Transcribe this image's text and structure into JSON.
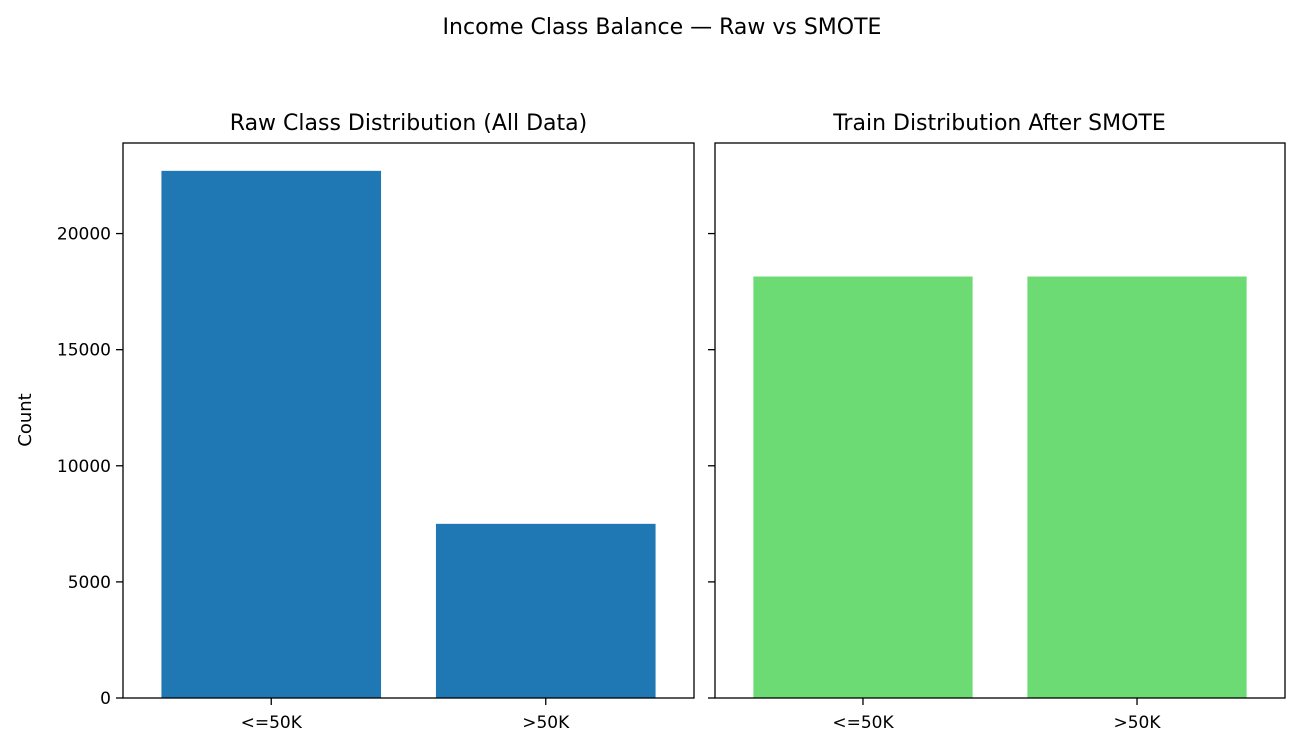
{
  "suptitle": "Income Class Balance — Raw vs SMOTE",
  "colors": {
    "raw_bar": "#1f77b4",
    "smote_bar": "#6ddb74"
  },
  "chart_data": [
    {
      "type": "bar",
      "title": "Raw Class Distribution (All Data)",
      "categories": [
        "<=50K",
        ">50K"
      ],
      "values": [
        22700,
        7500
      ],
      "xlabel": "",
      "ylabel": "Count",
      "ylim": [
        0,
        23900
      ],
      "yticks": [
        0,
        5000,
        10000,
        15000,
        20000
      ],
      "grid": false,
      "legend": "none",
      "color": "#1f77b4"
    },
    {
      "type": "bar",
      "title": "Train Distribution After SMOTE",
      "categories": [
        "<=50K",
        ">50K"
      ],
      "values": [
        18150,
        18150
      ],
      "xlabel": "",
      "ylabel": "",
      "ylim": [
        0,
        23900
      ],
      "yticks": [
        0,
        5000,
        10000,
        15000,
        20000
      ],
      "shared_y": true,
      "grid": false,
      "legend": "none",
      "color": "#6ddb74"
    }
  ]
}
